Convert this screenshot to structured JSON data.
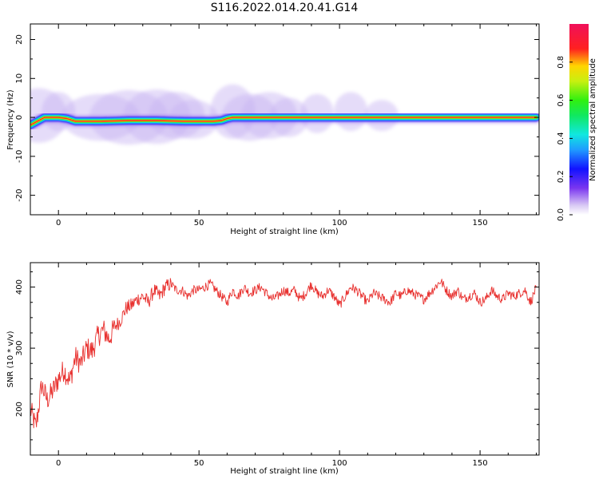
{
  "title": "S116.2022.014.20.41.G14",
  "colors": {
    "snr_line": "#e8312f",
    "axes": "#000000",
    "background": "#ffffff"
  },
  "chart_data": [
    {
      "type": "heatmap",
      "xlabel": "Height of straight line (km)",
      "ylabel": "Frequency (Hz)",
      "xlim": [
        -10,
        171
      ],
      "ylim": [
        -25,
        24
      ],
      "xticks": [
        0,
        50,
        100,
        150
      ],
      "yticks": [
        -20,
        -10,
        0,
        10,
        20
      ],
      "colorbar": {
        "label": "Normalized spectral amplitude",
        "ticks": [
          0.0,
          0.2,
          0.4,
          0.6,
          0.8
        ],
        "range": [
          0,
          1
        ],
        "colormap": "rainbow (violet-blue-cyan-green-yellow-red-magenta)"
      },
      "ridge": {
        "description": "dominant frequency ridge",
        "x": [
          -10,
          -8,
          -5,
          0,
          3,
          6,
          10,
          15,
          20,
          25,
          30,
          35,
          40,
          45,
          50,
          55,
          58,
          60,
          62,
          65,
          70,
          75,
          80,
          85,
          90,
          95,
          100,
          105,
          110,
          120,
          130,
          140,
          150,
          160,
          170
        ],
        "y": [
          -2.0,
          -1.2,
          0.0,
          0.0,
          -0.3,
          -1.0,
          -1.0,
          -1.0,
          -0.9,
          -0.8,
          -0.8,
          -0.8,
          -0.9,
          -1.0,
          -1.0,
          -1.0,
          -0.8,
          -0.3,
          0.0,
          0.0,
          0.0,
          0.0,
          0.0,
          0.0,
          0.0,
          0.0,
          0.0,
          0.0,
          0.0,
          0.0,
          0.0,
          0.0,
          0.0,
          0.0,
          0.0
        ]
      }
    },
    {
      "type": "line",
      "xlabel": "Height of straight line (km)",
      "ylabel": "SNR (10 * v/v)",
      "xlim": [
        -10,
        171
      ],
      "ylim": [
        125,
        440
      ],
      "xticks": [
        0,
        50,
        100,
        150
      ],
      "yticks": [
        200,
        300,
        400
      ],
      "series": [
        {
          "x": [
            -10,
            -8,
            -6,
            -4,
            -2,
            0,
            2,
            4,
            6,
            8,
            10,
            12,
            14,
            16,
            18,
            20,
            22,
            24,
            26,
            28,
            30,
            32,
            34,
            36,
            38,
            40,
            42,
            44,
            46,
            48,
            50,
            52,
            54,
            56,
            58,
            60,
            62,
            64,
            66,
            68,
            70,
            72,
            74,
            76,
            78,
            80,
            82,
            84,
            86,
            88,
            90,
            92,
            94,
            96,
            98,
            100,
            102,
            104,
            106,
            108,
            110,
            112,
            114,
            116,
            118,
            120,
            122,
            124,
            126,
            128,
            130,
            132,
            134,
            136,
            138,
            140,
            142,
            144,
            146,
            148,
            150,
            152,
            154,
            156,
            158,
            160,
            162,
            164,
            166,
            168,
            170
          ],
          "y": [
            200,
            170,
            240,
            215,
            230,
            250,
            265,
            245,
            285,
            275,
            300,
            295,
            320,
            330,
            315,
            335,
            345,
            365,
            370,
            380,
            385,
            375,
            395,
            385,
            400,
            405,
            395,
            395,
            385,
            395,
            395,
            400,
            405,
            395,
            385,
            375,
            395,
            385,
            400,
            390,
            395,
            400,
            390,
            380,
            385,
            395,
            390,
            395,
            380,
            390,
            405,
            390,
            385,
            395,
            385,
            370,
            385,
            400,
            395,
            385,
            375,
            390,
            385,
            380,
            375,
            390,
            385,
            395,
            390,
            385,
            380,
            390,
            400,
            410,
            395,
            385,
            395,
            380,
            385,
            390,
            375,
            380,
            395,
            385,
            380,
            390,
            385,
            390,
            395,
            375,
            400
          ]
        }
      ]
    }
  ]
}
